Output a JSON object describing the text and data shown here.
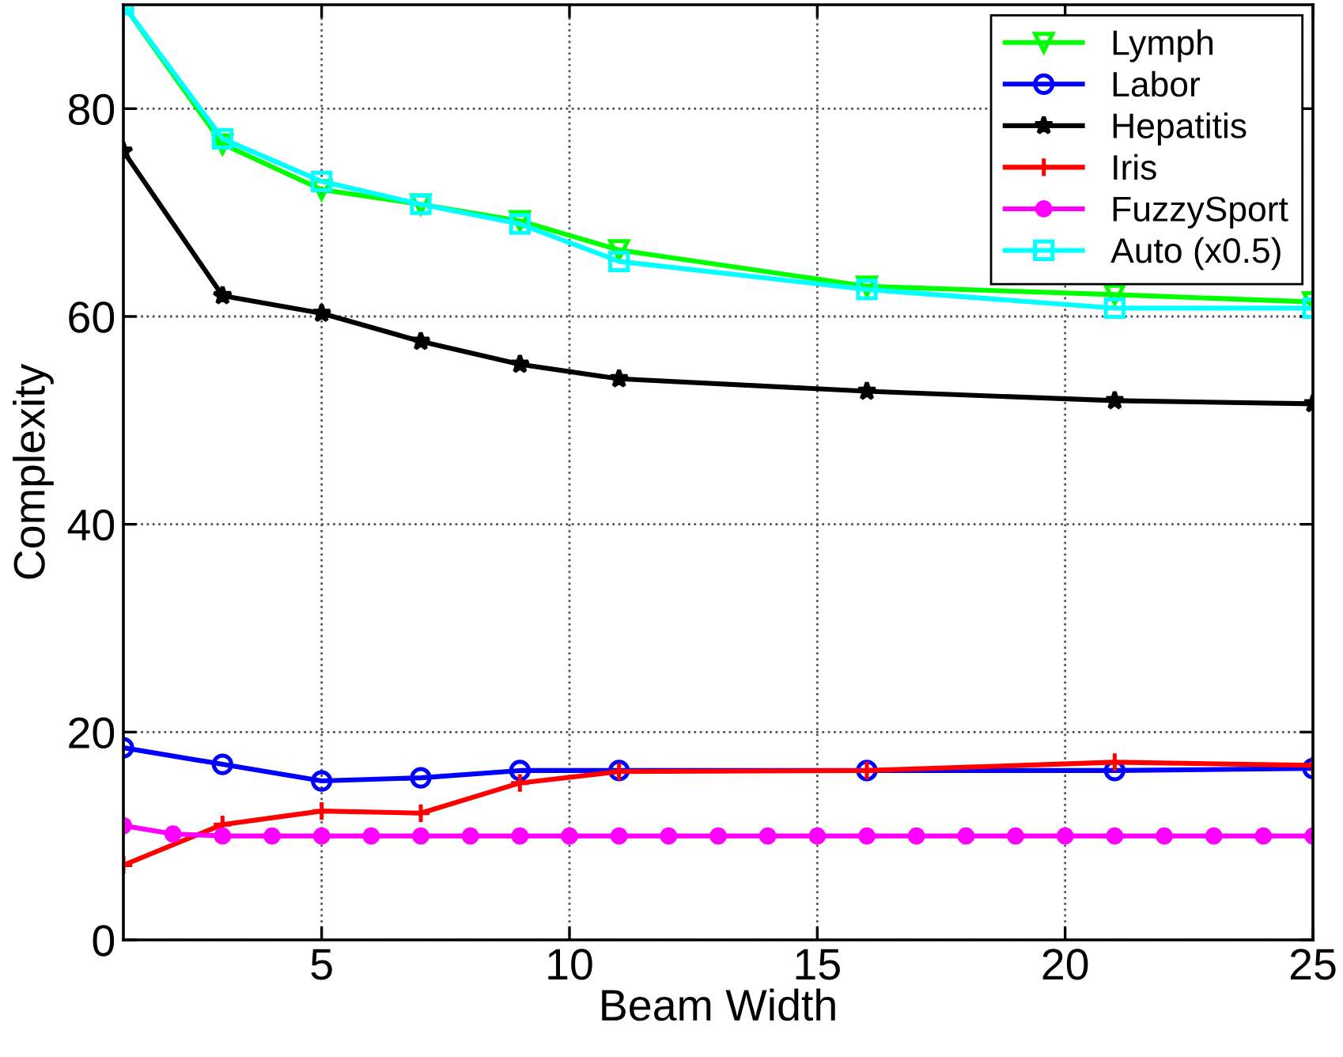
{
  "chart_data": {
    "type": "line",
    "xlabel": "Beam Width",
    "ylabel": "Complexity",
    "xlim": [
      1,
      25
    ],
    "xticks": [
      5,
      10,
      15,
      20,
      25
    ],
    "ylim": [
      0,
      90
    ],
    "yticks": [
      0,
      20,
      40,
      60,
      80
    ],
    "grid": true,
    "legend": "top right",
    "line_style": "solid",
    "series": [
      {
        "name": "Lymph",
        "color": "#00ff00",
        "marker": "triangle",
        "x": [
          1,
          3,
          5,
          7,
          9,
          11,
          16,
          21,
          25
        ],
        "values": [
          90,
          76.6,
          72.2,
          70.8,
          69.2,
          66.4,
          62.9,
          62.1,
          61.4
        ]
      },
      {
        "name": "Labor",
        "color": "#0000ff",
        "marker": "circle",
        "x": [
          1,
          3,
          5,
          7,
          9,
          11,
          16,
          21,
          25
        ],
        "values": [
          18.5,
          16.9,
          15.3,
          15.6,
          16.3,
          16.3,
          16.3,
          16.3,
          16.5
        ]
      },
      {
        "name": "Hepatitis",
        "color": "#000000",
        "marker": "star",
        "x": [
          1,
          3,
          5,
          7,
          9,
          11,
          16,
          21,
          25
        ],
        "values": [
          75.9,
          62.0,
          60.3,
          57.6,
          55.4,
          54.0,
          52.8,
          51.9,
          51.6
        ]
      },
      {
        "name": "Iris",
        "color": "#ff0000",
        "marker": "cross",
        "x": [
          1,
          3,
          5,
          7,
          9,
          11,
          16,
          21,
          25
        ],
        "values": [
          7.2,
          11.1,
          12.4,
          12.2,
          15.1,
          16.2,
          16.3,
          17.1,
          16.8
        ]
      },
      {
        "name": "FuzzySport",
        "color": "#ff00ff",
        "marker": "point",
        "x": [
          1,
          2,
          3,
          4,
          5,
          6,
          7,
          8,
          9,
          10,
          11,
          12,
          13,
          14,
          15,
          16,
          17,
          18,
          19,
          20,
          21,
          22,
          23,
          24,
          25
        ],
        "values": [
          11.0,
          10.2,
          10.0,
          10.0,
          10.0,
          10.0,
          10.0,
          10.0,
          10.0,
          10.0,
          10.0,
          10.0,
          10.0,
          10.0,
          10.0,
          10.0,
          10.0,
          10.0,
          10.0,
          10.0,
          10.0,
          10.0,
          10.0,
          10.0,
          10.0
        ]
      },
      {
        "name": "Auto (x0.5)",
        "color": "#00ffff",
        "marker": "square",
        "x": [
          1,
          3,
          5,
          7,
          9,
          11,
          16,
          21,
          25
        ],
        "values": [
          90,
          77.1,
          73.0,
          70.8,
          68.9,
          65.3,
          62.6,
          60.8,
          60.8
        ]
      }
    ]
  }
}
